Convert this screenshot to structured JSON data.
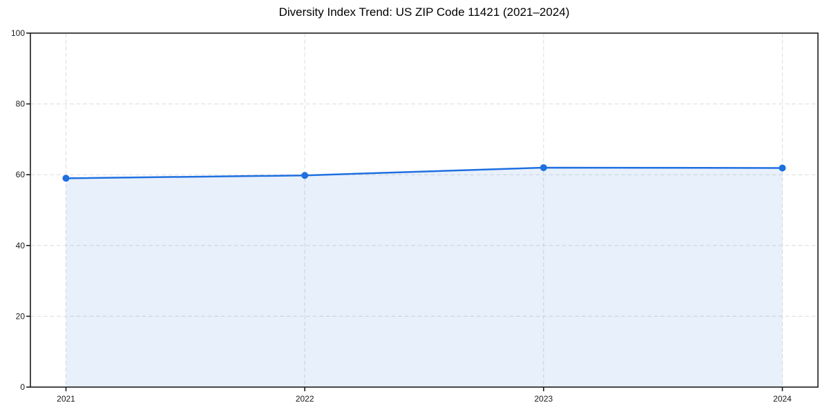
{
  "chart_data": {
    "type": "area",
    "title": "Diversity Index Trend: US ZIP Code 11421 (2021–2024)",
    "x": [
      2021,
      2022,
      2023,
      2024
    ],
    "xtick_labels": [
      "2021",
      "2022",
      "2023",
      "2024"
    ],
    "series": [
      {
        "name": "Diversity Index",
        "values": [
          59.0,
          59.8,
          62.0,
          61.9
        ]
      }
    ],
    "xlabel": "",
    "ylabel": "",
    "ylim": [
      0,
      100
    ],
    "yticks": [
      0,
      20,
      40,
      60,
      80,
      100
    ],
    "grid": true,
    "grid_style": "dashed",
    "legend": false,
    "marker": "circle",
    "colors": {
      "line": "#1e6fe0",
      "fill": "#1e6fe0",
      "fill_opacity": 0.1,
      "grid": "#dcdcdc",
      "axis": "#1a1a1a",
      "title": "#000000",
      "background": "#ffffff"
    }
  }
}
